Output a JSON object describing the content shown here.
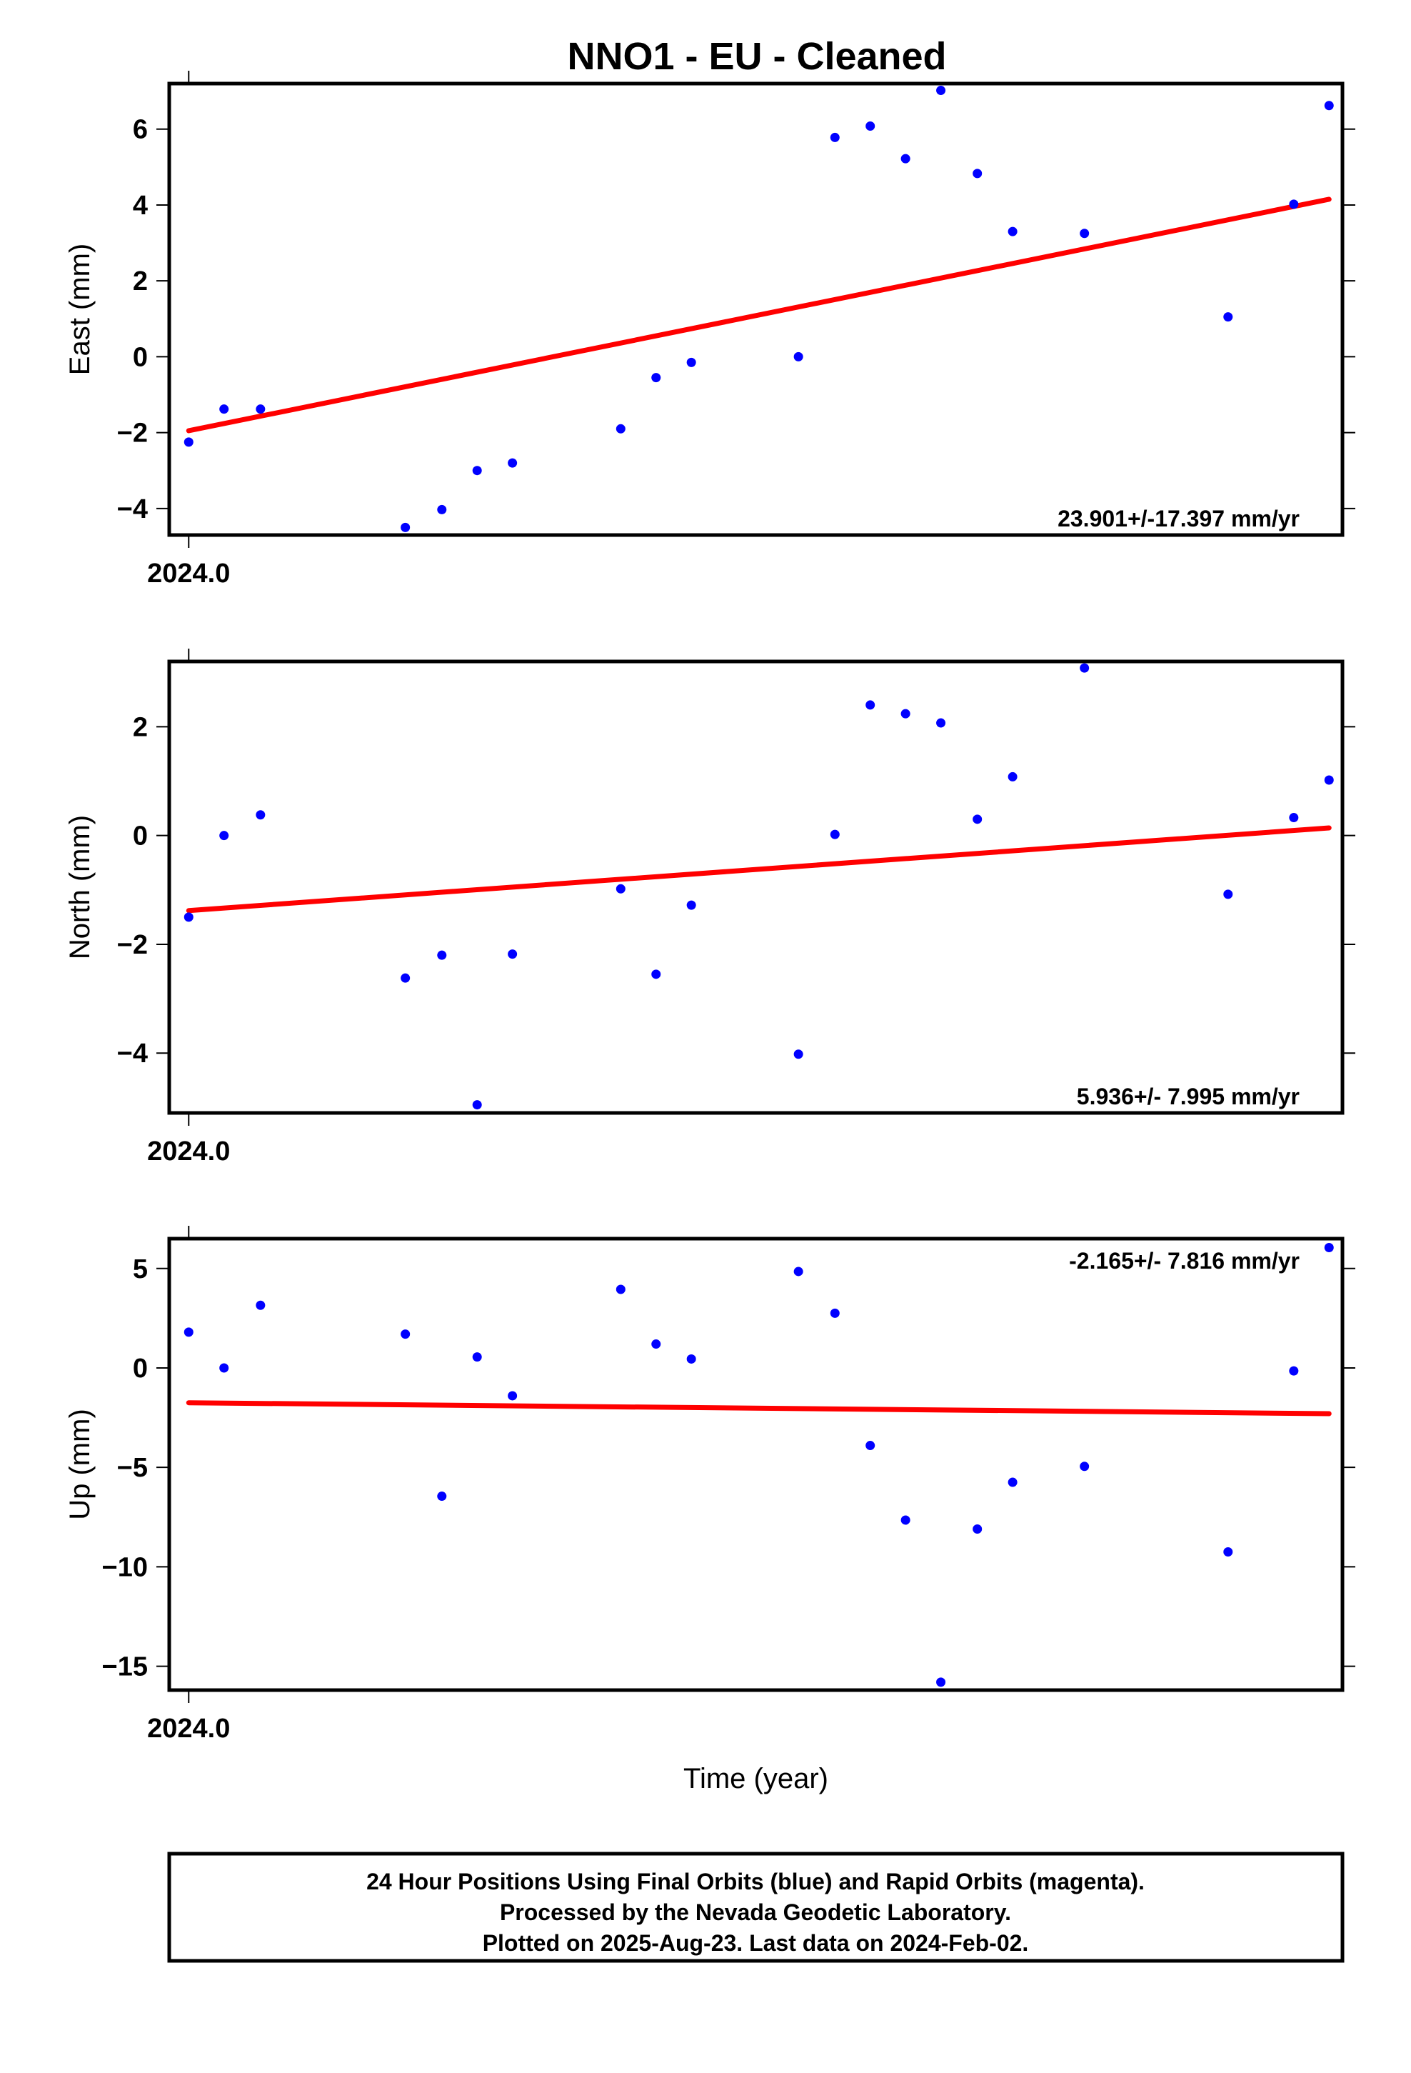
{
  "chart_data": [
    {
      "type": "scatter",
      "title": "NNO1  - EU - Cleaned",
      "ylabel": "East (mm)",
      "xlabel": "",
      "xlim": [
        2023.9984,
        2024.0948
      ],
      "ylim": [
        -4.7,
        7.2
      ],
      "x_tick_label": "2024.0",
      "x_tick_value": 2024.0,
      "yticks": [
        -4,
        -2,
        0,
        2,
        4,
        6
      ],
      "rate": "23.901+/-17.397 mm/yr",
      "trend": {
        "x": [
          2024.0,
          2024.0937
        ],
        "y": [
          -1.95,
          4.15
        ]
      },
      "series": [
        {
          "color": "#0000ff",
          "x": [
            2024.0,
            2024.0029,
            2024.0059,
            2024.0178,
            2024.0208,
            2024.0237,
            2024.0266,
            2024.0355,
            2024.0384,
            2024.0413,
            2024.0501,
            2024.0531,
            2024.056,
            2024.0589,
            2024.0618,
            2024.0648,
            2024.0677,
            2024.0736,
            2024.0854,
            2024.0908,
            2024.0937
          ],
          "y": [
            -2.25,
            -1.38,
            -1.38,
            -4.5,
            -4.03,
            -3.0,
            -2.8,
            -1.9,
            -0.55,
            -0.15,
            0.0,
            5.78,
            6.08,
            5.22,
            7.02,
            4.83,
            3.3,
            3.25,
            1.05,
            4.02,
            6.62
          ]
        }
      ]
    },
    {
      "type": "scatter",
      "ylabel": "North (mm)",
      "xlabel": "",
      "xlim": [
        2023.9984,
        2024.0948
      ],
      "ylim": [
        -5.1,
        3.2
      ],
      "x_tick_label": "2024.0",
      "x_tick_value": 2024.0,
      "yticks": [
        -4,
        -2,
        0,
        2
      ],
      "rate": "5.936+/- 7.995 mm/yr",
      "trend": {
        "x": [
          2024.0,
          2024.0937
        ],
        "y": [
          -1.38,
          0.14
        ]
      },
      "series": [
        {
          "color": "#0000ff",
          "x": [
            2024.0,
            2024.0029,
            2024.0059,
            2024.0178,
            2024.0208,
            2024.0237,
            2024.0266,
            2024.0355,
            2024.0384,
            2024.0413,
            2024.0501,
            2024.0531,
            2024.056,
            2024.0589,
            2024.0618,
            2024.0648,
            2024.0677,
            2024.0736,
            2024.0854,
            2024.0908,
            2024.0937
          ],
          "y": [
            -1.5,
            0.0,
            0.38,
            -2.62,
            -2.2,
            -4.95,
            -2.18,
            -0.98,
            -2.55,
            -1.28,
            -4.02,
            0.02,
            2.4,
            2.24,
            2.07,
            0.3,
            1.08,
            3.08,
            -1.08,
            0.33,
            1.02
          ]
        }
      ]
    },
    {
      "type": "scatter",
      "ylabel": "Up (mm)",
      "xlabel": "Time (year)",
      "xlim": [
        2023.9984,
        2024.0948
      ],
      "ylim": [
        -16.2,
        6.5
      ],
      "x_tick_label": "2024.0",
      "x_tick_value": 2024.0,
      "yticks": [
        -15,
        -10,
        -5,
        0,
        5
      ],
      "rate": "-2.165+/- 7.816 mm/yr",
      "trend": {
        "x": [
          2024.0,
          2024.0937
        ],
        "y": [
          -1.75,
          -2.3
        ]
      },
      "series": [
        {
          "color": "#0000ff",
          "x": [
            2024.0,
            2024.0029,
            2024.0059,
            2024.0178,
            2024.0208,
            2024.0237,
            2024.0266,
            2024.0355,
            2024.0384,
            2024.0413,
            2024.0501,
            2024.0531,
            2024.056,
            2024.0589,
            2024.0618,
            2024.0648,
            2024.0677,
            2024.0736,
            2024.0854,
            2024.0908,
            2024.0937
          ],
          "y": [
            1.8,
            0.0,
            3.15,
            1.7,
            -6.45,
            0.55,
            -1.4,
            3.95,
            1.2,
            0.45,
            4.85,
            2.75,
            -3.9,
            -7.65,
            -15.8,
            -8.1,
            -5.75,
            -4.95,
            -9.25,
            -0.15,
            6.05
          ]
        }
      ]
    }
  ],
  "caption": {
    "line1": "24 Hour Positions Using Final Orbits (blue) and Rapid Orbits (magenta).",
    "line2": "Processed by the Nevada Geodetic Laboratory.",
    "line3": "Plotted on 2025-Aug-23. Last data on 2024-Feb-02."
  },
  "colors": {
    "points": "#0000ff",
    "trend": "#ff0000",
    "axis": "#000000"
  }
}
